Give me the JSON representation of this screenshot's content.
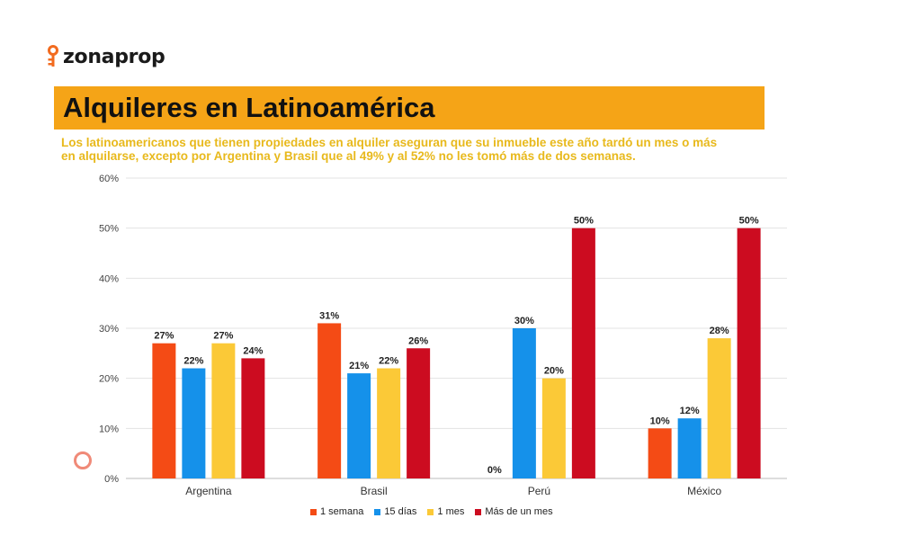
{
  "brand": {
    "name": "zonaprop"
  },
  "header": {
    "title": "Alquileres en Latinoamérica",
    "subtitle_line1": "Los latinoamericanos que tienen propiedades en alquiler aseguran que su inmueble este año tardó un mes o más",
    "subtitle_line2": "en alquilarse, excepto por Argentina y Brasil que al 49% y al 52% no les tomó más de dos semanas."
  },
  "colors": {
    "title_bar": "#f5a417",
    "subtitle": "#e8b91c",
    "logo_key": "#f26b1f"
  },
  "chart_data": {
    "type": "bar",
    "categories": [
      "Argentina",
      "Brasil",
      "Perú",
      "México"
    ],
    "series": [
      {
        "name": "1 semana",
        "color": "#f44b15",
        "values": [
          27,
          31,
          0,
          10
        ]
      },
      {
        "name": "15 días",
        "color": "#1591ea",
        "values": [
          22,
          21,
          30,
          12
        ]
      },
      {
        "name": "1 mes",
        "color": "#fbc937",
        "values": [
          27,
          22,
          20,
          28
        ]
      },
      {
        "name": "Más de un mes",
        "color": "#cc0c20",
        "values": [
          24,
          26,
          50,
          50
        ]
      }
    ],
    "ylim": [
      0,
      60
    ],
    "yticks": [
      "0%",
      "10%",
      "20%",
      "30%",
      "40%",
      "50%",
      "60%"
    ],
    "value_suffix": "%",
    "grid": true,
    "legend": "bottom"
  }
}
